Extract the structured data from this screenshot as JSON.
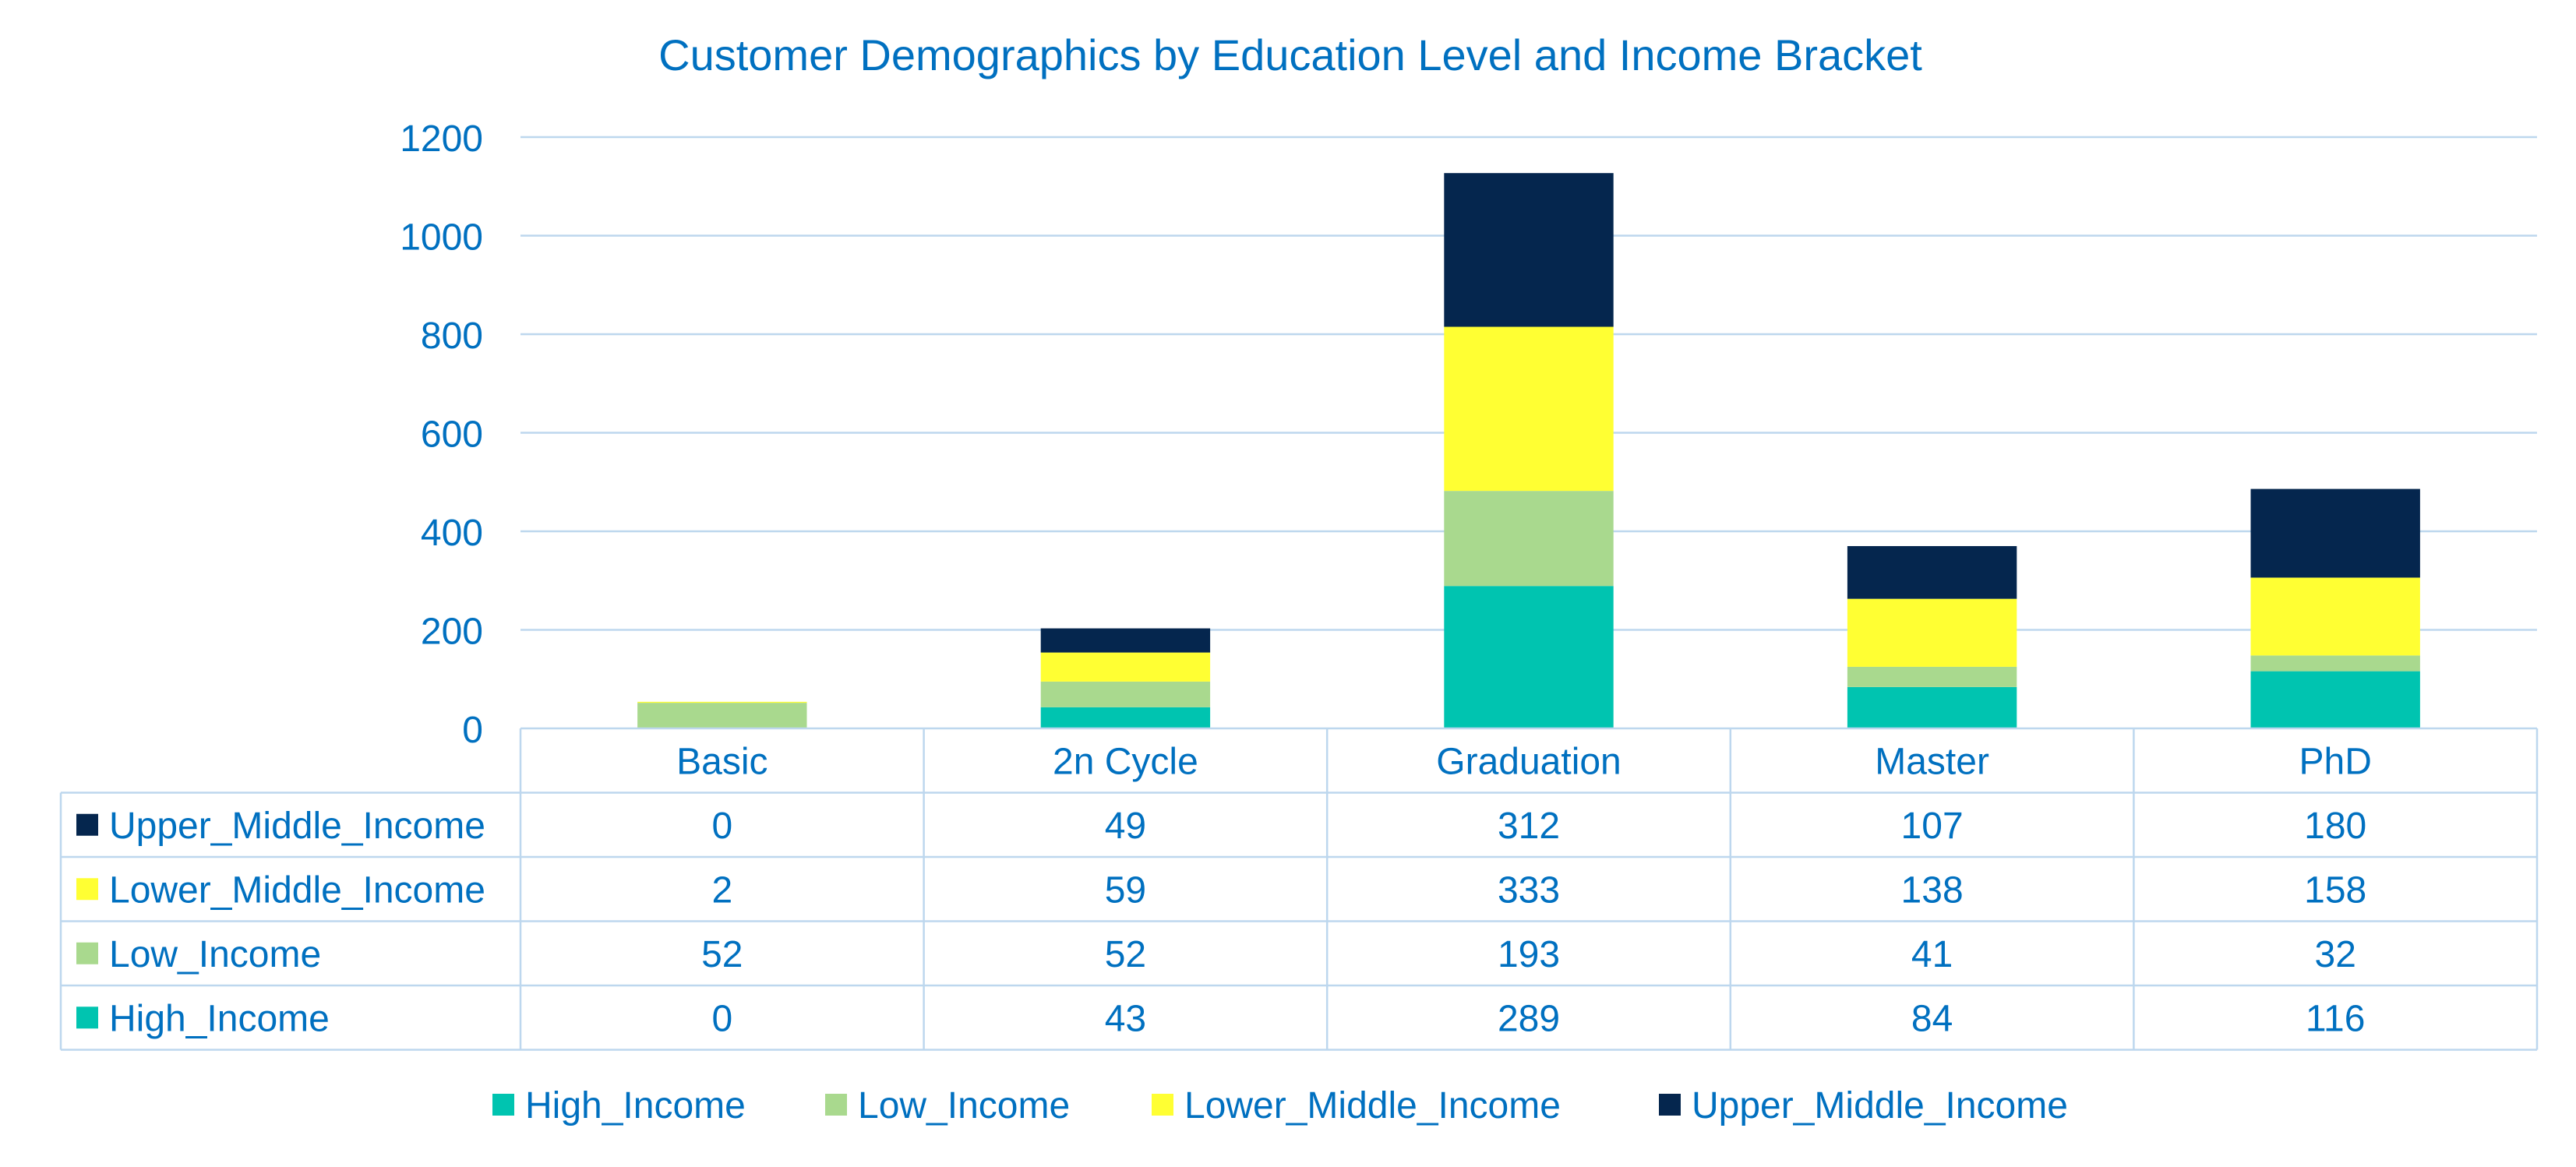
{
  "chart_data": {
    "type": "bar",
    "stacked": true,
    "title": "Customer Demographics by Education Level and Income Bracket",
    "xlabel": "",
    "ylabel": "",
    "ylim": [
      0,
      1200
    ],
    "yticks": [
      0,
      200,
      400,
      600,
      800,
      1000,
      1200
    ],
    "grid": true,
    "legend_position": "bottom",
    "data_table": true,
    "categories": [
      "Basic",
      "2n Cycle",
      "Graduation",
      "Master",
      "PhD"
    ],
    "series": [
      {
        "name": "High_Income",
        "color": "#00C4B0",
        "values": [
          0,
          43,
          289,
          84,
          116
        ]
      },
      {
        "name": "Low_Income",
        "color": "#A9D98E",
        "values": [
          52,
          52,
          193,
          41,
          32
        ]
      },
      {
        "name": "Lower_Middle_Income",
        "color": "#FFFF33",
        "values": [
          2,
          59,
          333,
          138,
          158
        ]
      },
      {
        "name": "Upper_Middle_Income",
        "color": "#05264E",
        "values": [
          0,
          49,
          312,
          107,
          180
        ]
      }
    ],
    "table_row_order": [
      "Upper_Middle_Income",
      "Lower_Middle_Income",
      "Low_Income",
      "High_Income"
    ],
    "text_color": "#0070C0",
    "grid_color": "#BDD7EE"
  }
}
